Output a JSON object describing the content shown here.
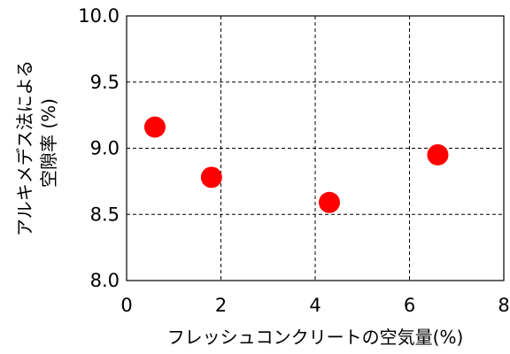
{
  "chart_data": {
    "type": "scatter",
    "title": "",
    "xlabel": "フレッシュコンクリートの空気量(%)",
    "ylabel_lines": [
      "アルキメデス法による",
      "空隙率 (%)"
    ],
    "xlim": [
      0,
      8
    ],
    "ylim": [
      8.0,
      10.0
    ],
    "x_ticks": [
      0,
      2,
      4,
      6,
      8
    ],
    "y_ticks": [
      8.0,
      8.5,
      9.0,
      9.5,
      10.0
    ],
    "x_tick_labels": [
      "0",
      "2",
      "4",
      "6",
      "8"
    ],
    "y_tick_labels": [
      "8.0",
      "8.5",
      "9.0",
      "9.5",
      "10.0"
    ],
    "grid": "dashed",
    "legend": "none",
    "series": [
      {
        "color": "#ff0000",
        "points": [
          {
            "x": 0.6,
            "y": 9.16
          },
          {
            "x": 1.8,
            "y": 8.78
          },
          {
            "x": 4.3,
            "y": 8.59
          },
          {
            "x": 6.6,
            "y": 8.95
          }
        ]
      }
    ]
  }
}
